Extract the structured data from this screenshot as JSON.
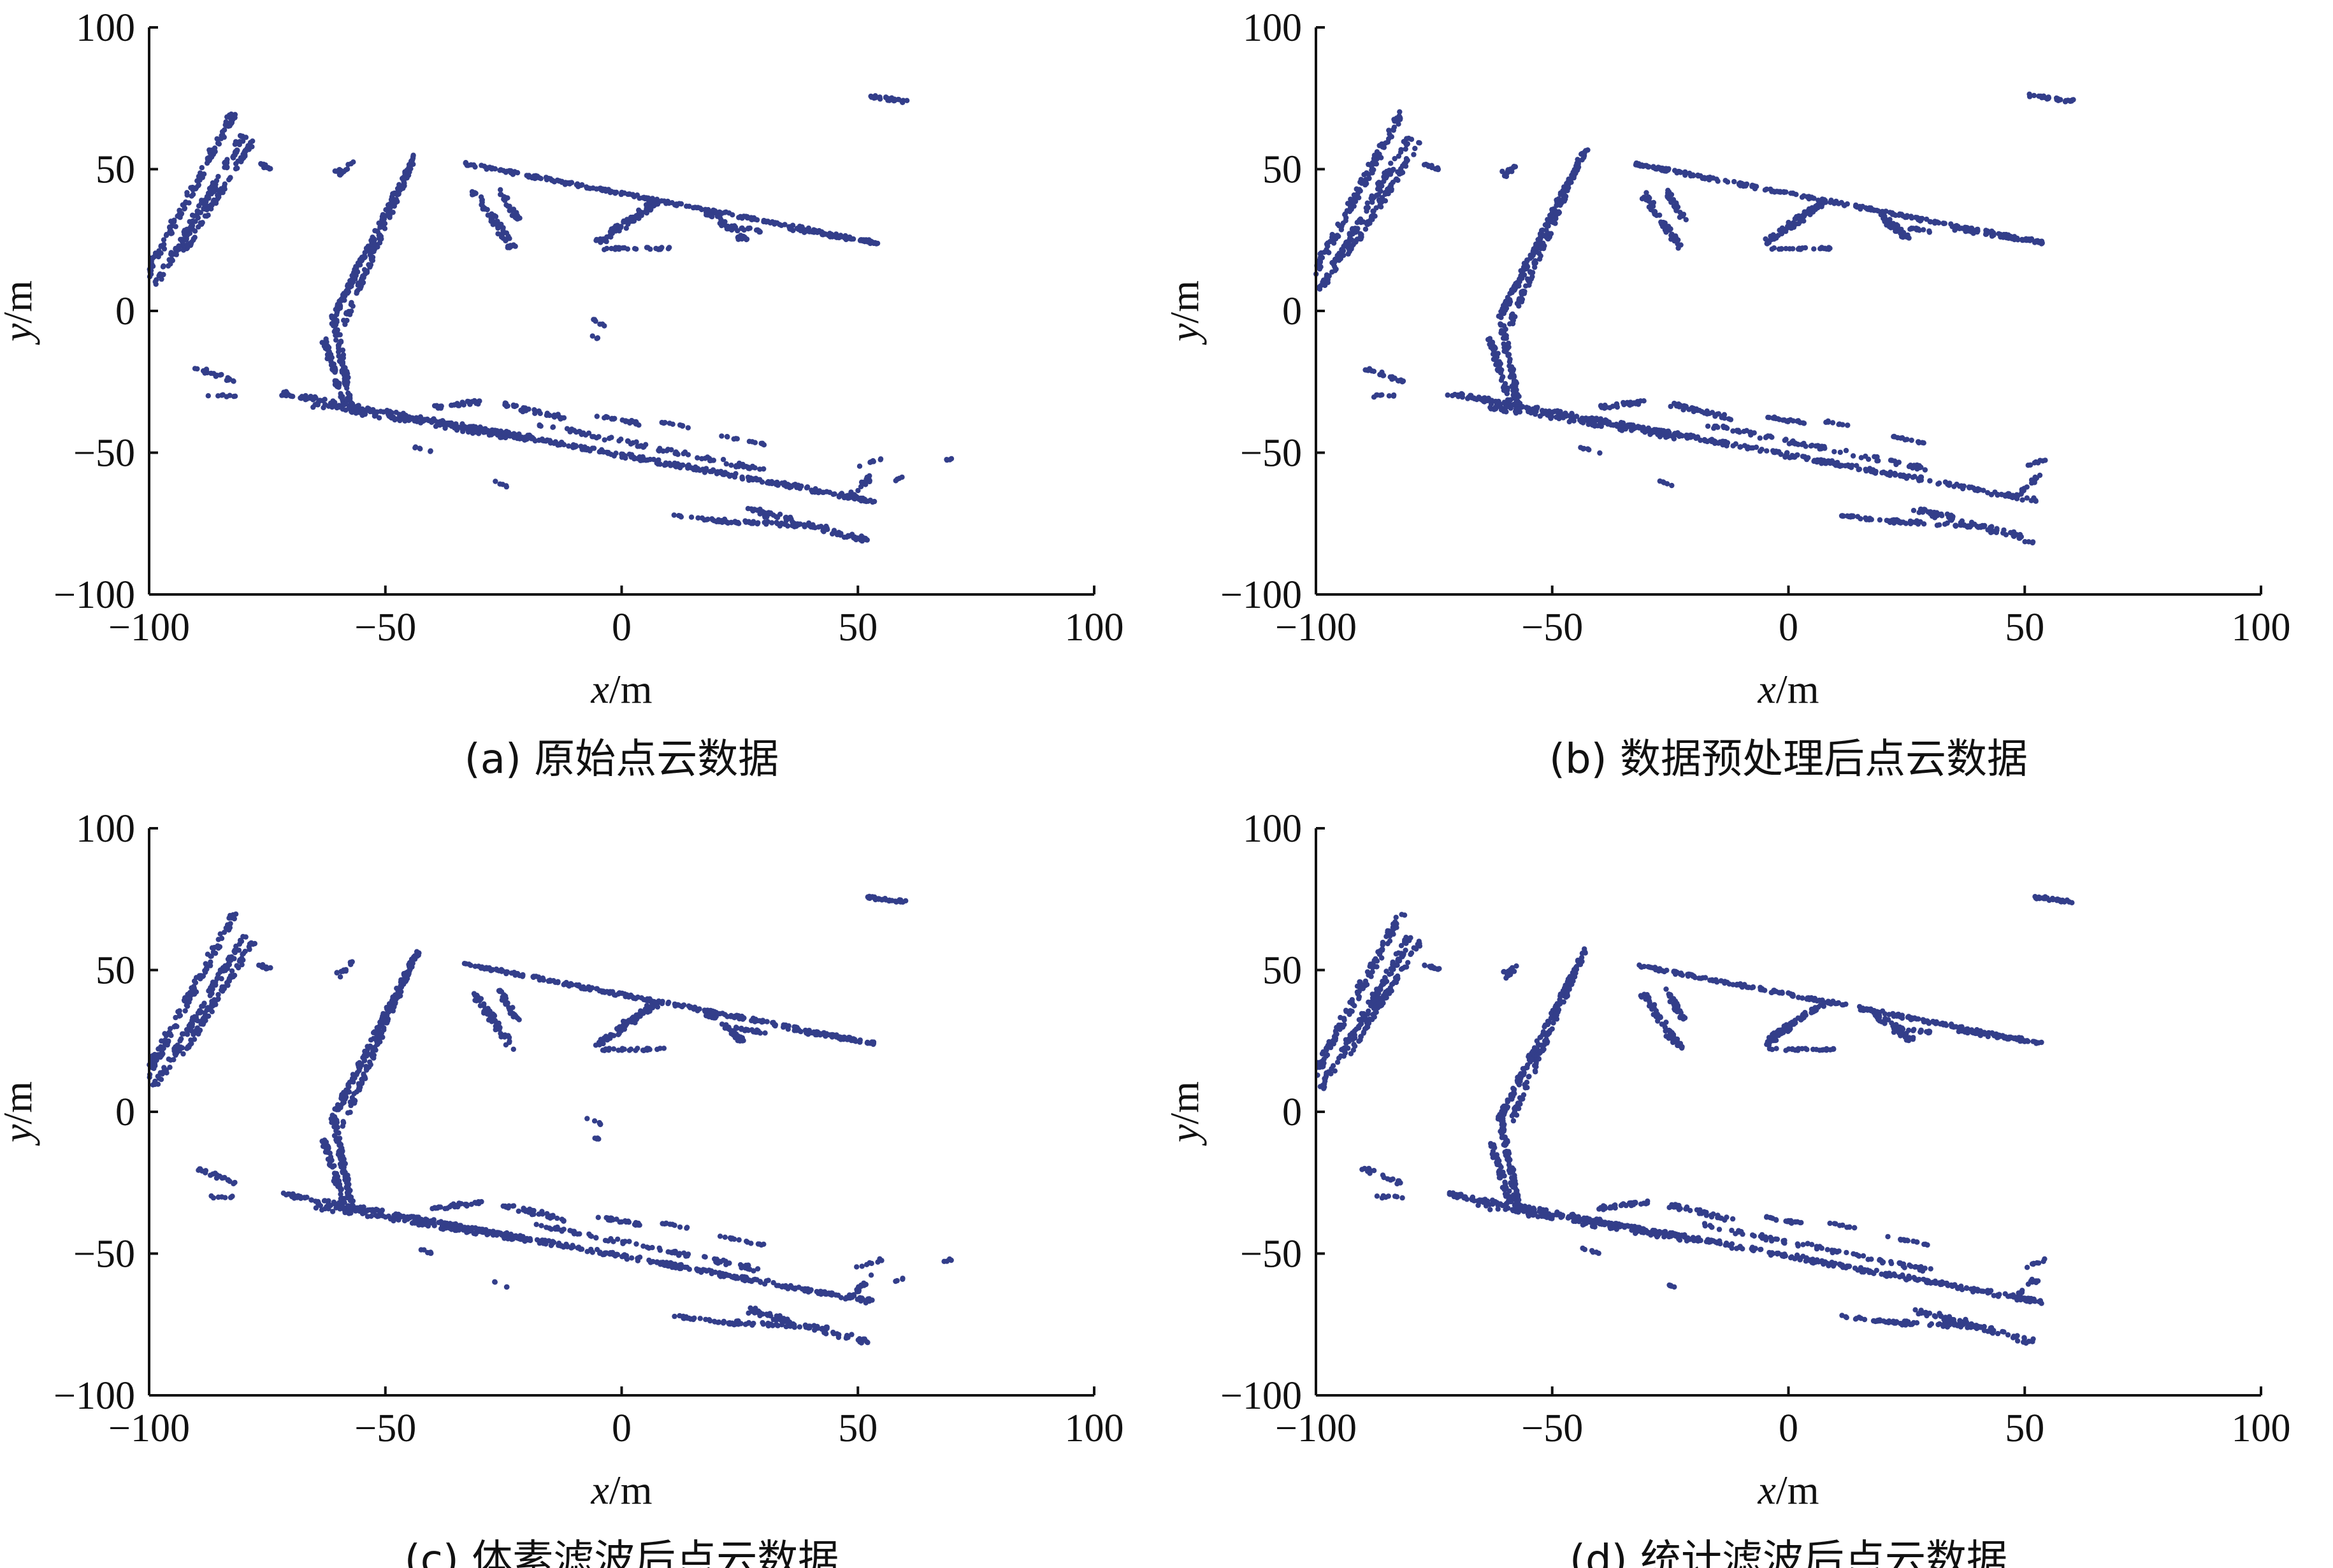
{
  "chart_data": [
    {
      "type": "scatter",
      "caption": "(a)  原始点云数据",
      "xlabel": "x/m",
      "ylabel": "y/m",
      "xlim": [
        -100,
        100
      ],
      "ylim": [
        -100,
        100
      ],
      "xticks": [
        "−100",
        "−50",
        "0",
        "50",
        "100"
      ],
      "yticks": [
        "−100",
        "−50",
        "0",
        "50",
        "100"
      ],
      "grid": false,
      "color": "#333e8a",
      "includes_noise": true
    },
    {
      "type": "scatter",
      "caption": "(b)  数据预处理后点云数据",
      "xlabel": "x/m",
      "ylabel": "y/m",
      "xlim": [
        -100,
        100
      ],
      "ylim": [
        -100,
        100
      ],
      "xticks": [
        "−100",
        "−50",
        "0",
        "50",
        "100"
      ],
      "yticks": [
        "−100",
        "−50",
        "0",
        "50",
        "100"
      ],
      "grid": false,
      "color": "#333e8a",
      "includes_noise": false
    },
    {
      "type": "scatter",
      "caption": "(c)  体素滤波后点云数据",
      "xlabel": "x/m",
      "ylabel": "y/m",
      "xlim": [
        -100,
        100
      ],
      "ylim": [
        -100,
        100
      ],
      "xticks": [
        "−100",
        "−50",
        "0",
        "50",
        "100"
      ],
      "yticks": [
        "−100",
        "−50",
        "0",
        "50",
        "100"
      ],
      "grid": false,
      "color": "#333e8a",
      "includes_noise": true
    },
    {
      "type": "scatter",
      "caption": "(d)  统计滤波后点云数据",
      "xlabel": "x/m",
      "ylabel": "y/m",
      "xlim": [
        -100,
        100
      ],
      "ylim": [
        -100,
        100
      ],
      "xticks": [
        "−100",
        "−50",
        "0",
        "50",
        "100"
      ],
      "yticks": [
        "−100",
        "−50",
        "0",
        "50",
        "100"
      ],
      "grid": false,
      "color": "#333e8a",
      "includes_noise": false
    }
  ]
}
